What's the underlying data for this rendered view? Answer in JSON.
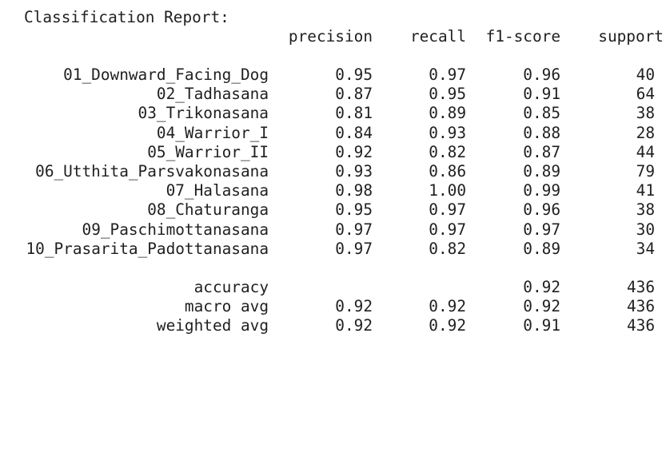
{
  "title": "Classification Report:",
  "headers": {
    "precision": "precision",
    "recall": "recall",
    "f1": "f1-score",
    "support": "support"
  },
  "rows": [
    {
      "label": "01_Downward_Facing_Dog",
      "precision": "0.95",
      "recall": "0.97",
      "f1": "0.96",
      "support": "40"
    },
    {
      "label": "02_Tadhasana",
      "precision": "0.87",
      "recall": "0.95",
      "f1": "0.91",
      "support": "64"
    },
    {
      "label": "03_Trikonasana",
      "precision": "0.81",
      "recall": "0.89",
      "f1": "0.85",
      "support": "38"
    },
    {
      "label": "04_Warrior_I",
      "precision": "0.84",
      "recall": "0.93",
      "f1": "0.88",
      "support": "28"
    },
    {
      "label": "05_Warrior_II",
      "precision": "0.92",
      "recall": "0.82",
      "f1": "0.87",
      "support": "44"
    },
    {
      "label": "06_Utthita_Parsvakonasana",
      "precision": "0.93",
      "recall": "0.86",
      "f1": "0.89",
      "support": "79"
    },
    {
      "label": "07_Halasana",
      "precision": "0.98",
      "recall": "1.00",
      "f1": "0.99",
      "support": "41"
    },
    {
      "label": "08_Chaturanga",
      "precision": "0.95",
      "recall": "0.97",
      "f1": "0.96",
      "support": "38"
    },
    {
      "label": "09_Paschimottanasana",
      "precision": "0.97",
      "recall": "0.97",
      "f1": "0.97",
      "support": "30"
    },
    {
      "label": "10_Prasarita_Padottanasana",
      "precision": "0.97",
      "recall": "0.82",
      "f1": "0.89",
      "support": "34"
    }
  ],
  "summary": {
    "accuracy": {
      "label": "accuracy",
      "f1": "0.92",
      "support": "436"
    },
    "macro": {
      "label": "macro avg",
      "precision": "0.92",
      "recall": "0.92",
      "f1": "0.92",
      "support": "436"
    },
    "weighted": {
      "label": "weighted avg",
      "precision": "0.92",
      "recall": "0.92",
      "f1": "0.91",
      "support": "436"
    }
  }
}
